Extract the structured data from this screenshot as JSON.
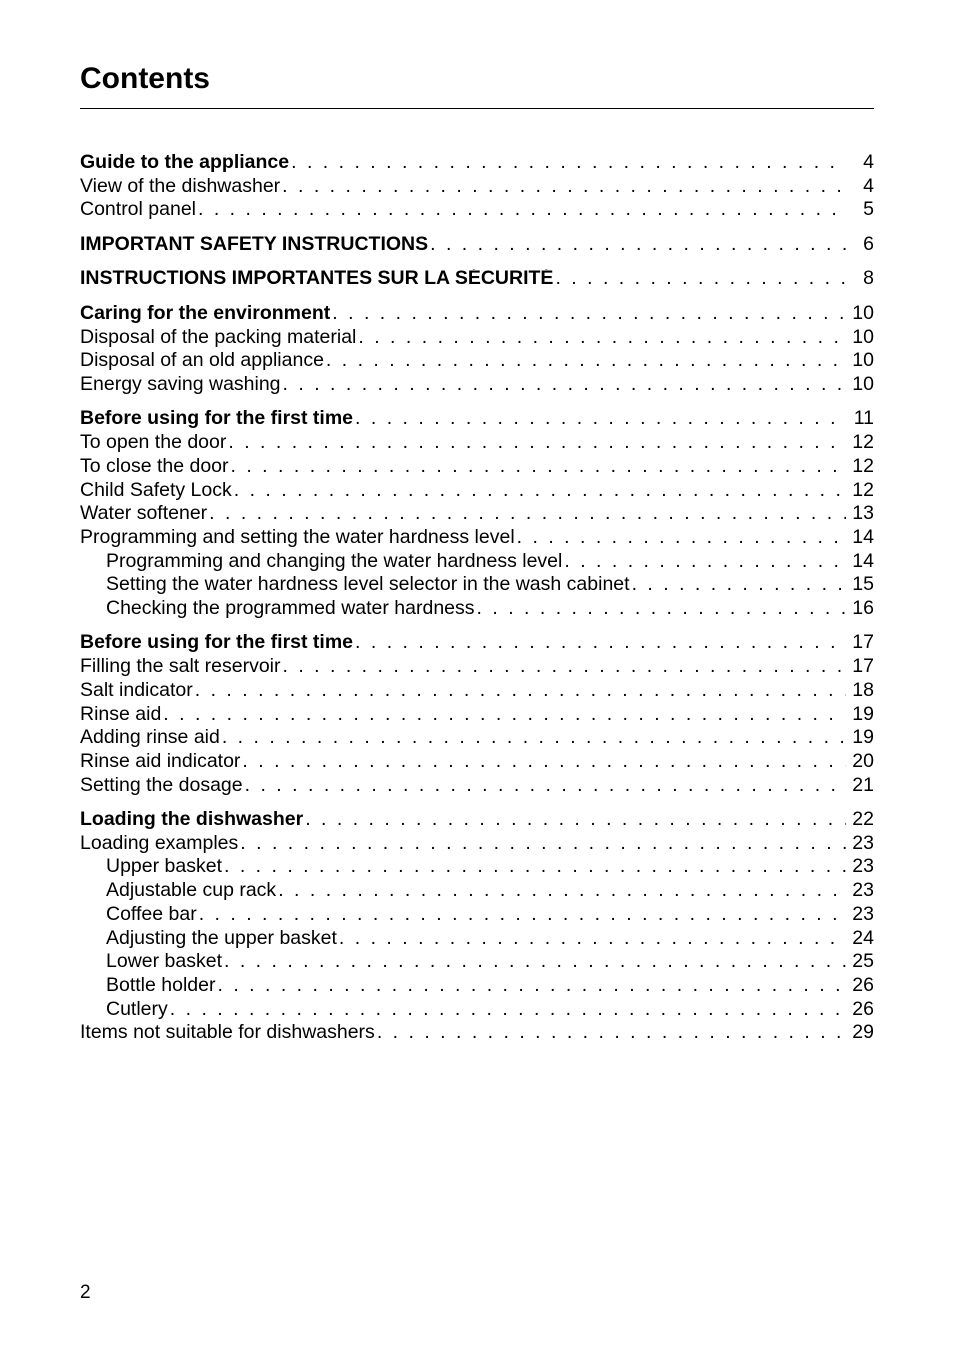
{
  "title": "Contents",
  "page_number": "2",
  "dots": ". . . . . . . . . . . . . . . . . . . . . . . . . . . . . . . . . . . . . . . . . . . . . . . . . . . . . . . . . . . . . . . . . . . . . . . . . . . . . . . . . . . . . . . . . . . . . . . . . . . . . . . . . . . . . . . . . . . . . . . .",
  "groups": [
    {
      "entries": [
        {
          "label": "Guide to the appliance",
          "page": "4",
          "bold": true,
          "indent": 0
        },
        {
          "label": "View of the dishwasher",
          "page": "4",
          "bold": false,
          "indent": 0
        },
        {
          "label": "Control panel",
          "page": "5",
          "bold": false,
          "indent": 0
        }
      ]
    },
    {
      "entries": [
        {
          "label": "IMPORTANT SAFETY INSTRUCTIONS",
          "page": "6",
          "bold": true,
          "indent": 0
        }
      ]
    },
    {
      "entries": [
        {
          "label": "INSTRUCTIONS IMPORTANTES SUR LA SÉCURITÉ",
          "page": "8",
          "bold": true,
          "indent": 0
        }
      ]
    },
    {
      "entries": [
        {
          "label": "Caring for the environment",
          "page": "10",
          "bold": true,
          "indent": 0
        },
        {
          "label": "Disposal of the packing material",
          "page": "10",
          "bold": false,
          "indent": 0
        },
        {
          "label": "Disposal of an old appliance",
          "page": "10",
          "bold": false,
          "indent": 0
        },
        {
          "label": "Energy saving washing",
          "page": "10",
          "bold": false,
          "indent": 0
        }
      ]
    },
    {
      "entries": [
        {
          "label": "Before using for the first time",
          "page": "11",
          "bold": true,
          "indent": 0
        },
        {
          "label": "To open the door",
          "page": "12",
          "bold": false,
          "indent": 0
        },
        {
          "label": "To close the door",
          "page": "12",
          "bold": false,
          "indent": 0
        },
        {
          "label": "Child Safety Lock",
          "page": "12",
          "bold": false,
          "indent": 0
        },
        {
          "label": "Water softener",
          "page": "13",
          "bold": false,
          "indent": 0
        },
        {
          "label": "Programming and setting the water hardness level",
          "page": "14",
          "bold": false,
          "indent": 0
        },
        {
          "label": "Programming and changing the water hardness level",
          "page": "14",
          "bold": false,
          "indent": 1
        },
        {
          "label": "Setting the water hardness level selector in the wash cabinet",
          "page": "15",
          "bold": false,
          "indent": 1
        },
        {
          "label": "Checking the programmed water hardness",
          "page": "16",
          "bold": false,
          "indent": 1
        }
      ]
    },
    {
      "entries": [
        {
          "label": "Before using for the first time",
          "page": "17",
          "bold": true,
          "indent": 0
        },
        {
          "label": "Filling the salt reservoir",
          "page": "17",
          "bold": false,
          "indent": 0
        },
        {
          "label": "Salt indicator",
          "page": "18",
          "bold": false,
          "indent": 0
        },
        {
          "label": "Rinse aid",
          "page": "19",
          "bold": false,
          "indent": 0
        },
        {
          "label": "Adding rinse aid",
          "page": "19",
          "bold": false,
          "indent": 0
        },
        {
          "label": "Rinse aid indicator",
          "page": "20",
          "bold": false,
          "indent": 0
        },
        {
          "label": "Setting the dosage",
          "page": "21",
          "bold": false,
          "indent": 0
        }
      ]
    },
    {
      "entries": [
        {
          "label": "Loading the dishwasher",
          "page": "22",
          "bold": true,
          "indent": 0
        },
        {
          "label": "Loading examples",
          "page": "23",
          "bold": false,
          "indent": 0
        },
        {
          "label": "Upper basket",
          "page": "23",
          "bold": false,
          "indent": 1
        },
        {
          "label": "Adjustable cup rack",
          "page": "23",
          "bold": false,
          "indent": 1
        },
        {
          "label": "Coffee bar",
          "page": "23",
          "bold": false,
          "indent": 1
        },
        {
          "label": "Adjusting the upper basket",
          "page": "24",
          "bold": false,
          "indent": 1
        },
        {
          "label": "Lower basket",
          "page": "25",
          "bold": false,
          "indent": 1
        },
        {
          "label": "Bottle holder",
          "page": "26",
          "bold": false,
          "indent": 1
        },
        {
          "label": "Cutlery",
          "page": "26",
          "bold": false,
          "indent": 1
        },
        {
          "label": "Items not suitable for dishwashers",
          "page": "29",
          "bold": false,
          "indent": 0
        }
      ]
    }
  ]
}
